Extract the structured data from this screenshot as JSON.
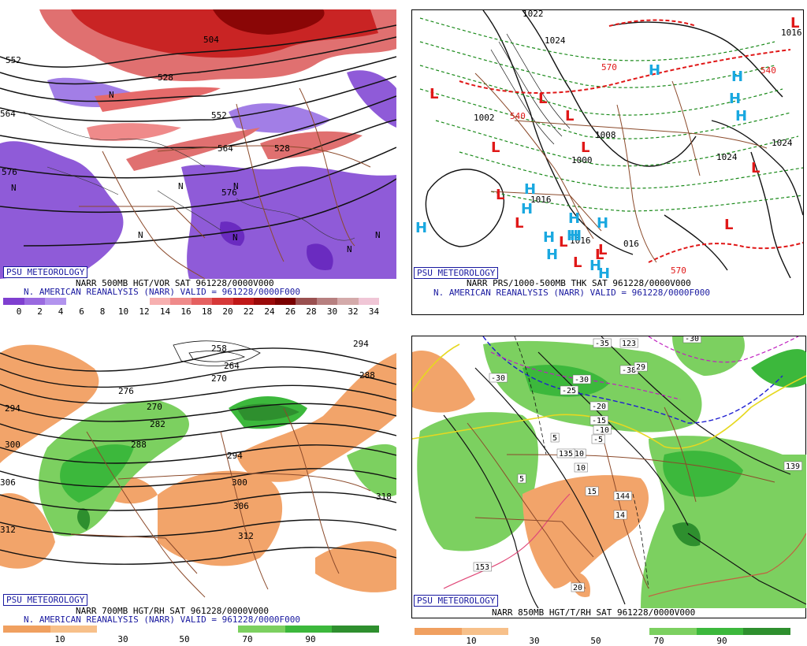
{
  "panels": {
    "p1": {
      "org_label": "PSU METEOROLOGY",
      "title": "NARR 500MB HGT/VOR SAT 961228/0000V000",
      "subtitle": "N. AMERICAN REANALYSIS (NARR) VALID = 961228/0000F000",
      "colorbar_labels": [
        "0",
        "2",
        "4",
        "6",
        "8",
        "10",
        "12",
        "14",
        "16",
        "18",
        "20",
        "22",
        "24",
        "26",
        "28",
        "30",
        "32",
        "34"
      ],
      "colorbar_colors": [
        "#7f3fd0",
        "#9a6ae0",
        "#b294ee",
        "#ffffff",
        "#ffffff",
        "#ffffff",
        "#ffffff",
        "#f7b0b0",
        "#ef8a8a",
        "#e56060",
        "#d63838",
        "#c01818",
        "#9a0a0a",
        "#7a0000",
        "#9a5050",
        "#b78080",
        "#d4aaaa",
        "#f0c6d6"
      ],
      "contour_labels": [
        "552",
        "528",
        "504",
        "552",
        "564",
        "576",
        "576",
        "564",
        "528"
      ],
      "center_letters": [
        "N",
        "N",
        "N",
        "N",
        "N",
        "N",
        "N",
        "N"
      ]
    },
    "p2": {
      "org_label": "PSU METEOROLOGY",
      "title": "NARR PRS/1000-500MB THK SAT 961228/0000V000",
      "subtitle": "N. AMERICAN REANALYSIS (NARR) VALID = 961228/0000F000",
      "contour_labels": [
        "1022",
        "1024",
        "1002",
        "1008",
        "1000",
        "1016",
        "1016",
        "016",
        "1024",
        "1024",
        "1016"
      ],
      "thickness_labels": [
        "540",
        "570",
        "540",
        "570"
      ],
      "high_letter": "H",
      "low_letter": "L"
    },
    "p3": {
      "org_label": "PSU METEOROLOGY",
      "title": "NARR 700MB HGT/RH SAT 961228/0000V000",
      "subtitle": "N. AMERICAN REANALYSIS (NARR) VALID = 961228/0000F000",
      "colorbar_labels": [
        "10",
        "30",
        "50",
        "70",
        "90"
      ],
      "colorbar_colors": [
        "#f0a060",
        "#f7c08a",
        "#ffffff",
        "#ffffff",
        "#ffffff",
        "#7cd060",
        "#3cb83c",
        "#2e8f2e"
      ],
      "contour_labels": [
        "258",
        "264",
        "270",
        "276",
        "270",
        "282",
        "288",
        "294",
        "300",
        "306",
        "312",
        "294",
        "300",
        "306",
        "312",
        "318",
        "294",
        "288"
      ]
    },
    "p4": {
      "org_label": "PSU METEOROLOGY",
      "title": "NARR 850MB HGT/T/RH SAT 961228/0000V000",
      "colorbar_labels": [
        "10",
        "30",
        "50",
        "70",
        "90"
      ],
      "colorbar_colors": [
        "#f0a060",
        "#f7c08a",
        "#ffffff",
        "#ffffff",
        "#ffffff",
        "#7cd060",
        "#3cb83c",
        "#2e8f2e"
      ],
      "temp_labels": [
        "-35",
        "123",
        "-30",
        "-30",
        "-38",
        "29",
        "-30",
        "-25",
        "-20",
        "-15",
        "-10",
        "-5",
        "5",
        "10",
        "135",
        "5",
        "15",
        "144",
        "14",
        "10",
        "153",
        "20",
        "139"
      ]
    }
  }
}
